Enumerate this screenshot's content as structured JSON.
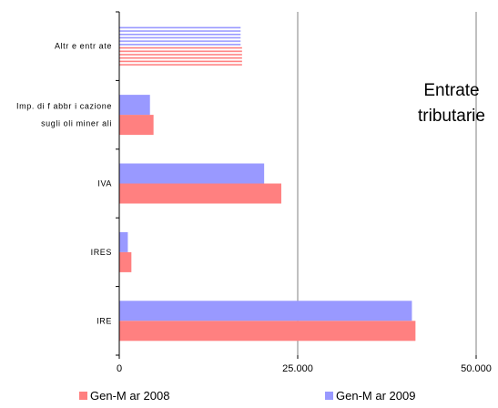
{
  "chart_data": {
    "type": "bar",
    "orientation": "horizontal",
    "categories": [
      "Altre entrate",
      "Imp. di fabbricazione sugli oli minerali",
      "IVA",
      "IRES",
      "IRE"
    ],
    "category_labels": [
      [
        "Altr e entr ate"
      ],
      [
        "Imp. di  f abbr i cazione",
        "sugli oli miner ali"
      ],
      [
        "IVA"
      ],
      [
        "IRES"
      ],
      [
        "IRE"
      ]
    ],
    "series": [
      {
        "name": "Gen-Mar 2009",
        "color": "#9999ff",
        "values": [
          17000,
          4300,
          20300,
          1200,
          41000
        ]
      },
      {
        "name": "Gen-Mar 2008",
        "color": "#ff8080",
        "values": [
          17200,
          4800,
          22700,
          1700,
          41500
        ]
      }
    ],
    "xlim": [
      0,
      50000
    ],
    "xticks": [
      0,
      25000,
      50000
    ],
    "xtick_labels": [
      "0",
      "25.000",
      "50.000"
    ],
    "annotation": [
      "Entrate",
      "tributarie"
    ],
    "striped_category": "Altre entrate",
    "grid": "vertical",
    "legend": "bottom"
  },
  "legend": {
    "item_2008": "Gen-M ar 2008",
    "item_2009": "Gen-M ar 2009"
  }
}
